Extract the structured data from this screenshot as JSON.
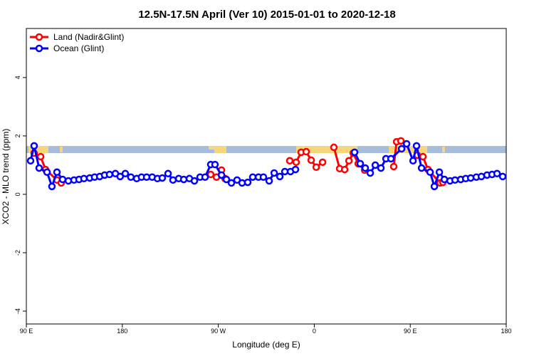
{
  "chart_data": {
    "type": "line",
    "title": "12.5N-17.5N April (Ver 10)   2015-01-01 to 2020-12-18",
    "xlabel": "Longitude (deg E)",
    "ylabel": "XCO2 - MLO trend (ppm)",
    "xlim": [
      90,
      540
    ],
    "xticks": [
      {
        "value": 90,
        "label": "90 E"
      },
      {
        "value": 180,
        "label": "180"
      },
      {
        "value": 270,
        "label": "90 W"
      },
      {
        "value": 360,
        "label": "0"
      },
      {
        "value": 450,
        "label": "90 E"
      },
      {
        "value": 540,
        "label": "180"
      }
    ],
    "ylim": [
      -4.44,
      5.68
    ],
    "yticks": [
      -4,
      -2,
      0,
      2,
      4
    ],
    "legend": "top-left",
    "series": [
      {
        "name": "Land (Nadir&Glint)",
        "color": "#ff0000",
        "x": [
          97.3,
          103.4,
          108,
          118.7,
          122.7,
          null,
          262.9,
          268.3,
          273,
          276.3,
          null,
          337,
          343,
          347.7,
          352.4,
          357.1,
          361.8,
          367.8,
          null,
          378.4,
          383.8,
          388.5,
          392.5,
          396.5,
          401.2,
          407.2,
          null,
          434.5,
          437.2,
          441.2,
          null,
          456.6,
          461.9,
          466.6,
          478,
          480.6
        ],
        "values": [
          1.41,
          1.29,
          0.85,
          0.49,
          0.39,
          null,
          0.68,
          0.59,
          0.83,
          0.54,
          null,
          1.15,
          1.1,
          1.44,
          1.46,
          1.17,
          0.93,
          1.1,
          null,
          1.61,
          0.88,
          0.85,
          1.15,
          1.41,
          1.05,
          0.83,
          null,
          0.95,
          1.8,
          1.83,
          null,
          1.34,
          1.29,
          0.85,
          0.39,
          0.41
        ]
      },
      {
        "name": "Ocean (Glint)",
        "color": "#0000ff",
        "x": [
          94,
          97.3,
          102,
          109.4,
          114,
          118.7,
          124,
          129.4,
          134.7,
          139.4,
          144,
          149.4,
          154,
          158.8,
          163.4,
          168,
          173.5,
          178,
          182.8,
          188,
          193.5,
          198,
          202.8,
          208,
          212.9,
          217.5,
          222.9,
          227.5,
          232.9,
          237.6,
          242.9,
          247.6,
          252.9,
          257.6,
          262.9,
          266.9,
          273,
          277.6,
          282.3,
          287.6,
          292.3,
          297.6,
          302.3,
          307.7,
          312.3,
          317.7,
          322.4,
          327.7,
          332.4,
          337.7,
          342.4,
          null,
          397.8,
          403.1,
          407.8,
          412.5,
          417.2,
          422.5,
          427.2,
          431.9,
          441.9,
          446.6,
          452.6,
          455.9,
          460.6,
          468.6,
          472.6,
          477.3,
          482,
          487.3,
          492,
          497.3,
          502,
          506.7,
          512,
          516.7,
          522,
          526.7,
          531.4,
          536.7
        ],
        "values": [
          1.15,
          1.66,
          0.9,
          0.76,
          0.27,
          0.76,
          0.51,
          0.46,
          0.49,
          0.51,
          0.54,
          0.56,
          0.59,
          0.61,
          0.66,
          0.68,
          0.71,
          0.61,
          0.71,
          0.59,
          0.54,
          0.59,
          0.59,
          0.59,
          0.54,
          0.56,
          0.71,
          0.49,
          0.54,
          0.51,
          0.54,
          0.46,
          0.59,
          0.59,
          1.02,
          1.02,
          0.66,
          0.51,
          0.39,
          0.49,
          0.39,
          0.41,
          0.59,
          0.59,
          0.59,
          0.46,
          0.73,
          0.61,
          0.78,
          0.78,
          0.85,
          null,
          1.44,
          1.05,
          0.9,
          0.73,
          1.0,
          0.9,
          1.22,
          1.22,
          1.56,
          1.73,
          1.15,
          1.66,
          0.9,
          0.76,
          0.27,
          0.76,
          0.51,
          0.46,
          0.49,
          0.51,
          0.54,
          0.56,
          0.59,
          0.61,
          0.66,
          0.68,
          0.71,
          0.61
        ]
      }
    ]
  }
}
